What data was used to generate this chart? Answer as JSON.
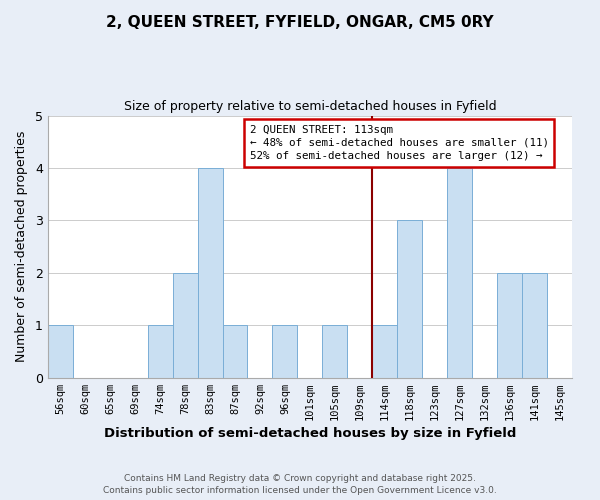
{
  "title": "2, QUEEN STREET, FYFIELD, ONGAR, CM5 0RY",
  "subtitle": "Size of property relative to semi-detached houses in Fyfield",
  "xlabel": "Distribution of semi-detached houses by size in Fyfield",
  "ylabel": "Number of semi-detached properties",
  "bins": [
    "56sqm",
    "60sqm",
    "65sqm",
    "69sqm",
    "74sqm",
    "78sqm",
    "83sqm",
    "87sqm",
    "92sqm",
    "96sqm",
    "101sqm",
    "105sqm",
    "109sqm",
    "114sqm",
    "118sqm",
    "123sqm",
    "127sqm",
    "132sqm",
    "136sqm",
    "141sqm",
    "145sqm"
  ],
  "counts": [
    1,
    0,
    0,
    0,
    1,
    2,
    4,
    1,
    0,
    1,
    0,
    1,
    0,
    1,
    3,
    0,
    4,
    0,
    2,
    2,
    0
  ],
  "bar_color": "#c9dff2",
  "bar_edge_color": "#7aaed6",
  "subject_line_index": 13,
  "subject_line_color": "#8b0000",
  "annotation_title": "2 QUEEN STREET: 113sqm",
  "annotation_line1": "← 48% of semi-detached houses are smaller (11)",
  "annotation_line2": "52% of semi-detached houses are larger (12) →",
  "annotation_box_color": "#ffffff",
  "annotation_box_edge": "#cc0000",
  "ylim": [
    0,
    5
  ],
  "yticks": [
    0,
    1,
    2,
    3,
    4,
    5
  ],
  "figure_bg": "#e8eef7",
  "axes_bg": "#ffffff",
  "grid_color": "#cccccc",
  "footnote1": "Contains HM Land Registry data © Crown copyright and database right 2025.",
  "footnote2": "Contains public sector information licensed under the Open Government Licence v3.0."
}
